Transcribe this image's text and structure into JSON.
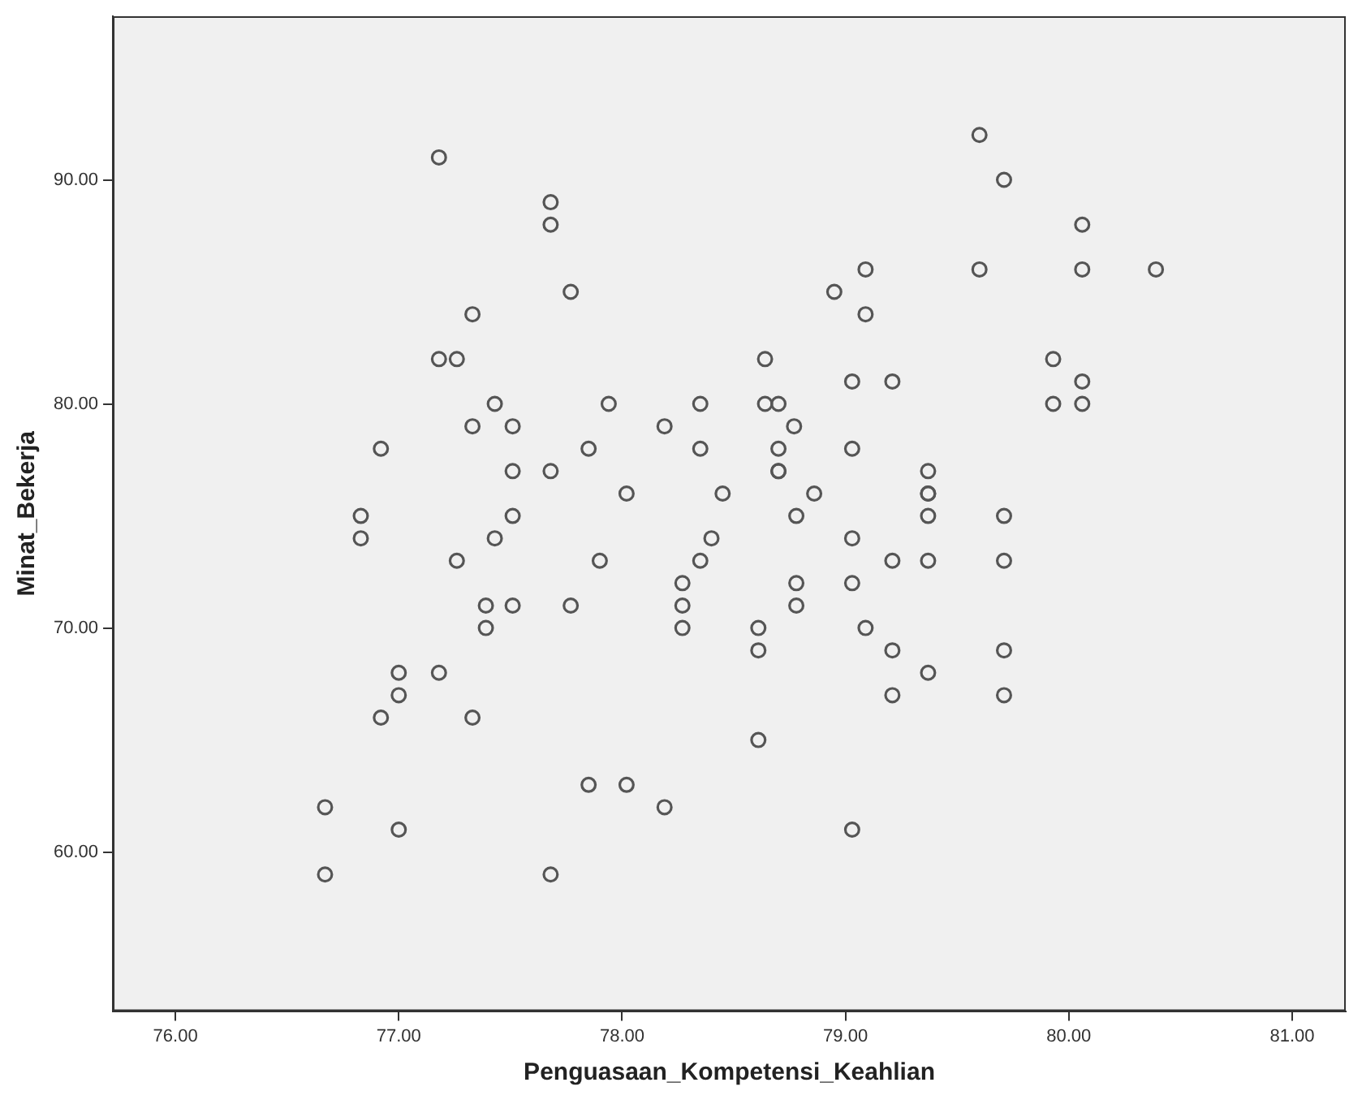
{
  "chart_data": {
    "type": "scatter",
    "xlabel": "Penguasaan_Kompetensi_Keahlian",
    "ylabel": "Minat_Bekerja",
    "x": [
      76.67,
      76.67,
      76.83,
      76.83,
      76.92,
      76.92,
      77.0,
      77.0,
      77.0,
      77.18,
      77.18,
      77.18,
      77.26,
      77.26,
      77.33,
      77.33,
      77.33,
      77.39,
      77.39,
      77.43,
      77.43,
      77.51,
      77.51,
      77.51,
      77.51,
      77.68,
      77.68,
      77.68,
      77.68,
      77.77,
      77.77,
      77.85,
      77.85,
      77.9,
      77.94,
      78.02,
      78.02,
      78.19,
      78.19,
      78.27,
      78.27,
      78.27,
      78.35,
      78.35,
      78.35,
      78.4,
      78.45,
      78.61,
      78.61,
      78.61,
      78.64,
      78.64,
      78.7,
      78.7,
      78.7,
      78.7,
      78.77,
      78.78,
      78.78,
      78.78,
      78.86,
      78.95,
      79.03,
      79.03,
      79.03,
      79.03,
      79.03,
      79.09,
      79.09,
      79.09,
      79.21,
      79.21,
      79.21,
      79.21,
      79.37,
      79.37,
      79.37,
      79.37,
      79.37,
      79.37,
      79.6,
      79.6,
      79.71,
      79.71,
      79.71,
      79.71,
      79.71,
      79.93,
      79.93,
      80.06,
      80.06,
      80.06,
      80.06,
      80.39
    ],
    "values": [
      62,
      59,
      75,
      74,
      78,
      66,
      68,
      67,
      61,
      91,
      82,
      68,
      82,
      73,
      84,
      79,
      66,
      71,
      70,
      80,
      74,
      79,
      77,
      75,
      71,
      89,
      88,
      77,
      59,
      85,
      71,
      78,
      63,
      73,
      80,
      76,
      63,
      79,
      62,
      72,
      71,
      70,
      80,
      78,
      73,
      74,
      76,
      70,
      69,
      65,
      82,
      80,
      80,
      78,
      77,
      77,
      79,
      75,
      72,
      71,
      76,
      85,
      81,
      78,
      74,
      72,
      61,
      86,
      84,
      70,
      81,
      73,
      69,
      67,
      77,
      76,
      76,
      75,
      73,
      68,
      92,
      86,
      90,
      75,
      73,
      69,
      67,
      82,
      80,
      81,
      80,
      88,
      86,
      86
    ],
    "color": "#555555",
    "marker": "circle",
    "grid": false,
    "legend": false,
    "xlim": [
      75.72,
      81.24
    ],
    "ylim": [
      52.9,
      97.3
    ],
    "xticks": [
      {
        "value": 76,
        "label": "76.00"
      },
      {
        "value": 77,
        "label": "77.00"
      },
      {
        "value": 78,
        "label": "78.00"
      },
      {
        "value": 79,
        "label": "79.00"
      },
      {
        "value": 80,
        "label": "80.00"
      },
      {
        "value": 81,
        "label": "81.00"
      }
    ],
    "yticks": [
      {
        "value": 60,
        "label": "60.00"
      },
      {
        "value": 70,
        "label": "70.00"
      },
      {
        "value": 80,
        "label": "80.00"
      },
      {
        "value": 90,
        "label": "90.00"
      }
    ]
  }
}
